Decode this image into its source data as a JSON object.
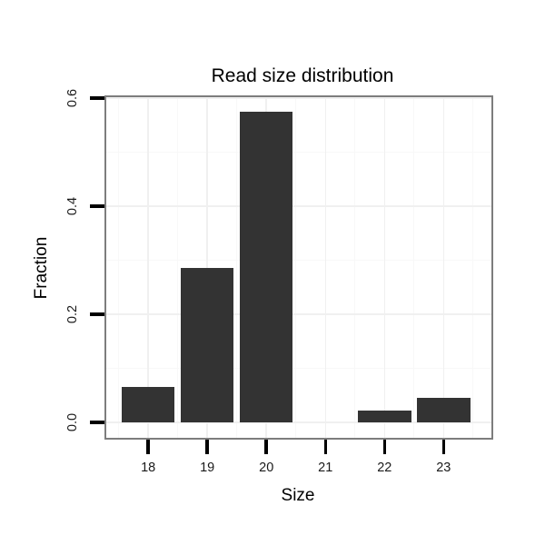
{
  "chart_data": {
    "type": "bar",
    "title": "Read size distribution",
    "xlabel": "Size",
    "ylabel": "Fraction",
    "categories": [
      18,
      19,
      20,
      21,
      22,
      23
    ],
    "values": [
      0.065,
      0.285,
      0.575,
      0,
      0.022,
      0.045
    ],
    "x_tick_labels": [
      "18",
      "19",
      "20",
      "21",
      "22",
      "23"
    ],
    "y_ticks": [
      0.0,
      0.2,
      0.4,
      0.6
    ],
    "y_tick_labels": [
      "0.0",
      "0.2",
      "0.4",
      "0.6"
    ],
    "x_minor_gridlines": [
      17.5,
      18.5,
      19.5,
      20.5,
      21.5,
      22.5,
      23.5
    ],
    "y_minor_gridlines": [
      0.1,
      0.3,
      0.5
    ],
    "xlim": [
      17.29,
      23.81
    ],
    "ylim": [
      -0.029,
      0.602
    ],
    "bar_width": 0.9,
    "grid": true,
    "legend_position": "none",
    "colors": {
      "bar_fill": "#333333",
      "panel_border": "#7d7d7d",
      "grid_major": "#f0f0f0",
      "grid_minor": "#f8f8f8",
      "tick": "#000000",
      "tick_label": "#1a1a1a",
      "text": "#000000",
      "background": "#ffffff"
    }
  }
}
